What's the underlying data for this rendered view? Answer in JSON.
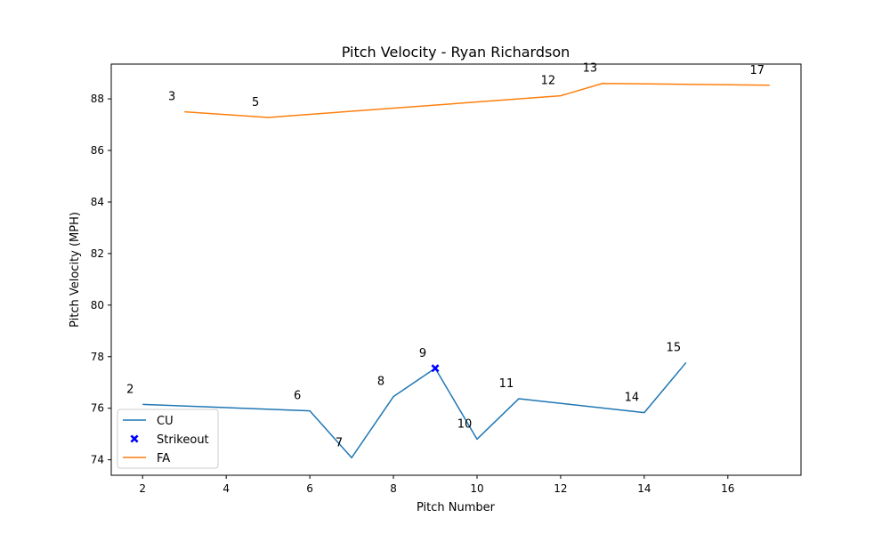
{
  "chart_data": {
    "type": "line",
    "title": "Pitch Velocity - Ryan Richardson",
    "xlabel": "Pitch Number",
    "ylabel": "Pitch Velocity (MPH)",
    "xlim": [
      1.25,
      17.75
    ],
    "ylim": [
      73.4,
      89.35
    ],
    "xticks": [
      2,
      4,
      6,
      8,
      10,
      12,
      14,
      16
    ],
    "yticks": [
      74,
      76,
      78,
      80,
      82,
      84,
      86,
      88
    ],
    "grid": false,
    "legend_position": "bottom-left",
    "series": [
      {
        "name": "CU",
        "color": "#1f77b4",
        "points": [
          {
            "x": 2,
            "y": 76.15,
            "label": "2"
          },
          {
            "x": 6,
            "y": 75.9,
            "label": "6"
          },
          {
            "x": 7,
            "y": 74.08,
            "label": "7"
          },
          {
            "x": 8,
            "y": 76.45,
            "label": "8"
          },
          {
            "x": 9,
            "y": 77.55,
            "label": "9"
          },
          {
            "x": 10,
            "y": 74.8,
            "label": "10"
          },
          {
            "x": 11,
            "y": 76.37,
            "label": "11"
          },
          {
            "x": 14,
            "y": 75.83,
            "label": "14"
          },
          {
            "x": 15,
            "y": 77.77,
            "label": "15"
          }
        ]
      },
      {
        "name": "FA",
        "color": "#ff7f0e",
        "points": [
          {
            "x": 3,
            "y": 87.5,
            "label": "3"
          },
          {
            "x": 5,
            "y": 87.28,
            "label": "5"
          },
          {
            "x": 12,
            "y": 88.12,
            "label": "12"
          },
          {
            "x": 13,
            "y": 88.6,
            "label": "13"
          },
          {
            "x": 17,
            "y": 88.53,
            "label": "17"
          }
        ]
      }
    ],
    "markers": [
      {
        "name": "Strikeout",
        "color": "#0000ff",
        "symbol": "x",
        "x": 9,
        "y": 77.55
      }
    ],
    "legend": [
      "CU",
      "Strikeout",
      "FA"
    ]
  }
}
